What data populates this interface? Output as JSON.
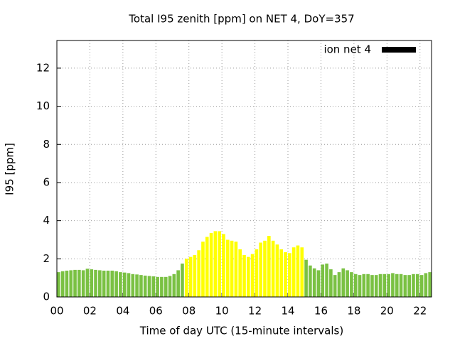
{
  "chart_data": {
    "type": "bar",
    "title": "Total I95 zenith [ppm] on NET 4, DoY=357",
    "xlabel": "Time of day UTC (15-minute intervals)",
    "ylabel": "I95 [ppm]",
    "series": [
      {
        "name": "ion net 4",
        "color": "#000000",
        "x": [
          0,
          0.25,
          0.5,
          0.75,
          1,
          1.25,
          1.5,
          1.75,
          2,
          2.25,
          2.5,
          2.75,
          3,
          3.25,
          3.5,
          3.75,
          4,
          4.25,
          4.5,
          4.75,
          5,
          5.25,
          5.5,
          5.75,
          6,
          6.25,
          6.5,
          6.75,
          7,
          7.25,
          7.5,
          7.75,
          8,
          8.25,
          8.5,
          8.75,
          9,
          9.25,
          9.5,
          9.75,
          10,
          10.25,
          10.5,
          10.75,
          11,
          11.25,
          11.5,
          11.75,
          12,
          12.25,
          12.5,
          12.75,
          13,
          13.25,
          13.5,
          13.75,
          14,
          14.25,
          14.5,
          14.75,
          15,
          15.25,
          15.5,
          15.75,
          16,
          16.25,
          16.5,
          16.75,
          17,
          17.25,
          17.5,
          17.75,
          18,
          18.25,
          18.5,
          18.75,
          19,
          19.25,
          19.5,
          19.75,
          20,
          20.25,
          20.5,
          20.75,
          21,
          21.25,
          21.5,
          21.75,
          22,
          22.25,
          22.5
        ],
        "values": [
          1.3,
          1.35,
          1.38,
          1.4,
          1.42,
          1.42,
          1.4,
          1.48,
          1.45,
          1.42,
          1.4,
          1.38,
          1.38,
          1.38,
          1.35,
          1.3,
          1.28,
          1.25,
          1.2,
          1.18,
          1.15,
          1.12,
          1.1,
          1.08,
          1.05,
          1.05,
          1.05,
          1.1,
          1.2,
          1.4,
          1.75,
          2.0,
          2.1,
          2.2,
          2.45,
          2.9,
          3.15,
          3.35,
          3.45,
          3.45,
          3.3,
          3.0,
          2.95,
          2.9,
          2.5,
          2.2,
          2.1,
          2.25,
          2.5,
          2.85,
          2.95,
          3.2,
          2.95,
          2.75,
          2.5,
          2.35,
          2.3,
          2.6,
          2.7,
          2.6,
          1.95,
          1.65,
          1.5,
          1.4,
          1.7,
          1.75,
          1.45,
          1.15,
          1.3,
          1.5,
          1.4,
          1.3,
          1.2,
          1.15,
          1.2,
          1.2,
          1.15,
          1.15,
          1.2,
          1.2,
          1.2,
          1.25,
          1.2,
          1.2,
          1.15,
          1.15,
          1.2,
          1.2,
          1.15,
          1.25,
          1.3
        ],
        "bar_colors": [
          "#7ac143",
          "#7ac143",
          "#7ac143",
          "#7ac143",
          "#7ac143",
          "#7ac143",
          "#7ac143",
          "#7ac143",
          "#7ac143",
          "#7ac143",
          "#7ac143",
          "#7ac143",
          "#7ac143",
          "#7ac143",
          "#7ac143",
          "#7ac143",
          "#7ac143",
          "#7ac143",
          "#7ac143",
          "#7ac143",
          "#7ac143",
          "#7ac143",
          "#7ac143",
          "#7ac143",
          "#7ac143",
          "#7ac143",
          "#7ac143",
          "#7ac143",
          "#7ac143",
          "#7ac143",
          "#7ac143",
          "#ffff00",
          "#ffff00",
          "#ffff00",
          "#ffff00",
          "#ffff00",
          "#ffff00",
          "#ffff00",
          "#ffff00",
          "#ffff00",
          "#ffff00",
          "#ffff00",
          "#ffff00",
          "#ffff00",
          "#ffff00",
          "#ffff00",
          "#ffff00",
          "#ffff00",
          "#ffff00",
          "#ffff00",
          "#ffff00",
          "#ffff00",
          "#ffff00",
          "#ffff00",
          "#ffff00",
          "#ffff00",
          "#ffff00",
          "#ffff00",
          "#ffff00",
          "#ffff00",
          "#7ac143",
          "#7ac143",
          "#7ac143",
          "#7ac143",
          "#7ac143",
          "#7ac143",
          "#7ac143",
          "#7ac143",
          "#7ac143",
          "#7ac143",
          "#7ac143",
          "#7ac143",
          "#7ac143",
          "#7ac143",
          "#7ac143",
          "#7ac143",
          "#7ac143",
          "#7ac143",
          "#7ac143",
          "#7ac143",
          "#7ac143",
          "#7ac143",
          "#7ac143",
          "#7ac143",
          "#7ac143",
          "#7ac143",
          "#7ac143",
          "#7ac143",
          "#7ac143",
          "#7ac143",
          "#7ac143"
        ]
      }
    ],
    "bar_width": 0.2,
    "xlim": [
      0,
      22.7
    ],
    "xticks": [
      {
        "value": 0,
        "label": "00"
      },
      {
        "value": 2,
        "label": "02"
      },
      {
        "value": 4,
        "label": "04"
      },
      {
        "value": 6,
        "label": "06"
      },
      {
        "value": 8,
        "label": "08"
      },
      10,
      12,
      14,
      16,
      18,
      20,
      22
    ],
    "ylim": [
      0,
      13.45
    ],
    "yticks": [
      0,
      2,
      4,
      6,
      8,
      10,
      12
    ],
    "grid": true,
    "legend": "top-right"
  }
}
